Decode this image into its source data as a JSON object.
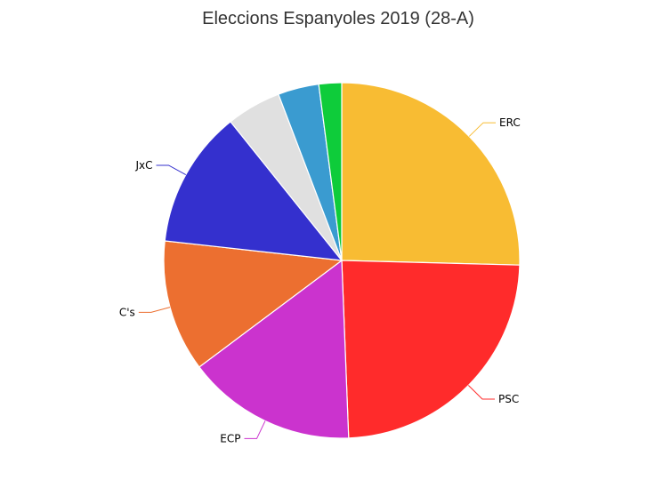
{
  "chart_data": {
    "type": "pie",
    "title": "Eleccions Espanyoles 2019 (28-A)",
    "legend": "none",
    "slices": [
      {
        "label": "ERC",
        "value": 24.6,
        "color": "#F8BC33"
      },
      {
        "label": "PSC",
        "value": 23.2,
        "color": "#FF2B2B"
      },
      {
        "label": "ECP",
        "value": 14.9,
        "color": "#CB33CE"
      },
      {
        "label": "C's",
        "value": 11.6,
        "color": "#EC6F30"
      },
      {
        "label": "JxC",
        "value": 12.1,
        "color": "#3430CE"
      },
      {
        "label": "",
        "value": 4.8,
        "color": "#E0E0E0"
      },
      {
        "label": "",
        "value": 3.6,
        "color": "#3A9BD0"
      },
      {
        "label": "",
        "value": 2.0,
        "color": "#0ECC3A"
      }
    ]
  }
}
